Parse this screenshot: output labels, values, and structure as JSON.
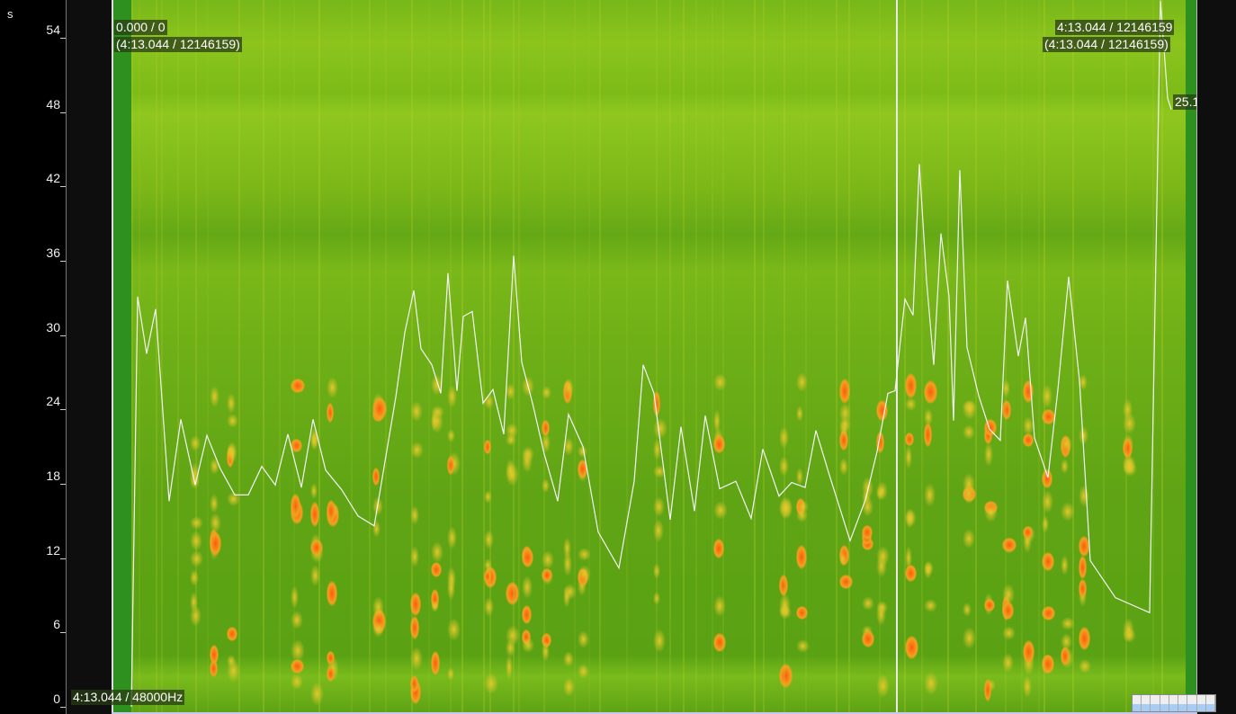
{
  "axis": {
    "unit": "s",
    "ticks": [
      "54",
      "48",
      "42",
      "36",
      "30",
      "24",
      "18",
      "12",
      "6",
      "0"
    ],
    "tick_values": [
      54,
      48,
      42,
      36,
      30,
      24,
      18,
      12,
      6,
      0
    ]
  },
  "overlay": {
    "top_left_line1": "0.000 / 0",
    "top_left_line2": "(4:13.044 / 12146159)",
    "top_right_line1": "4:13.044 / 12146159",
    "top_right_line2": "(4:13.044 / 12146159)",
    "bottom_left": "4:13.044 / 48000Hz",
    "value_label": "25.1"
  },
  "colors": {
    "line": "#ffffff",
    "spectrogram_low": "#5aa214",
    "spectrogram_high": "#ff5a10",
    "cursor": "#e8e8e8"
  },
  "curve_values": [
    0,
    33.1,
    28.5,
    32.1,
    16.6,
    23.2,
    17.9,
    21.9,
    19.2,
    17.1,
    17.1,
    19.4,
    17.9,
    22.0,
    17.7,
    23.2,
    19.1,
    17.5,
    15.4,
    14.6,
    25.0,
    30.2,
    33.6,
    28.9,
    27.6,
    25.3,
    35.0,
    25.5,
    31.5,
    31.9,
    24.5,
    25.6,
    22.0,
    36.4,
    27.8,
    24.5,
    20.4,
    16.6,
    23.6,
    21.0,
    14.1,
    11.2,
    18.2,
    27.6,
    25.3,
    15.1,
    22.6,
    15.8,
    23.5,
    17.6,
    18.2,
    15.2,
    20.8,
    17.0,
    18.1,
    17.7,
    22.3,
    18.7,
    13.4,
    16.7,
    20.6,
    25.3,
    25.5,
    32.9,
    31.6,
    43.8,
    34.4,
    27.6,
    38.2,
    33.1,
    23.1,
    43.3,
    29.0,
    25.1,
    22.4,
    21.5,
    34.4,
    28.3,
    31.4,
    21.7,
    18.5,
    25.6,
    34.7,
    26.3,
    11.8,
    8.8,
    7.6,
    57.0,
    49.1,
    48.2
  ]
}
